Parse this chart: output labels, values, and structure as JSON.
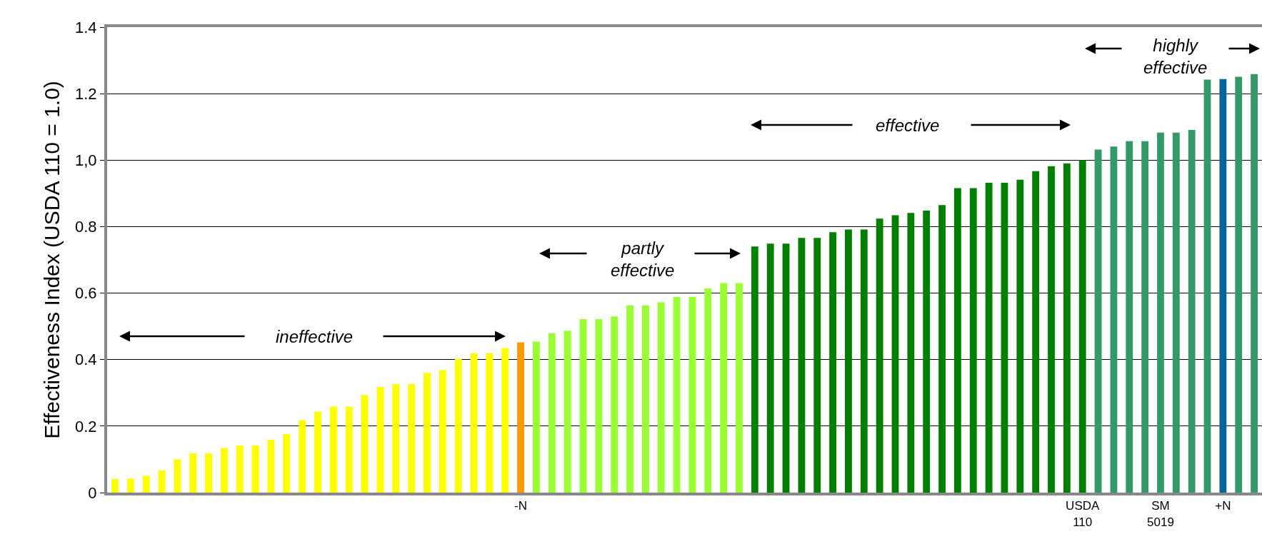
{
  "chart_data": {
    "type": "bar",
    "ylabel": "Effectiveness Index (USDA 110 = 1.0)",
    "categories": [
      null,
      null,
      null,
      null,
      null,
      null,
      null,
      null,
      null,
      null,
      null,
      null,
      null,
      null,
      null,
      null,
      null,
      null,
      null,
      null,
      null,
      null,
      null,
      null,
      null,
      null,
      "-N",
      null,
      null,
      null,
      null,
      null,
      null,
      null,
      null,
      null,
      null,
      null,
      null,
      null,
      null,
      null,
      null,
      null,
      null,
      null,
      null,
      null,
      null,
      null,
      null,
      null,
      null,
      null,
      null,
      null,
      null,
      null,
      null,
      null,
      null,
      null,
      "USDA 110",
      null,
      null,
      null,
      null,
      "SM 5019",
      null,
      null,
      null,
      "+N",
      null,
      null
    ],
    "values": [
      0.041,
      0.042,
      0.051,
      0.067,
      0.1,
      0.118,
      0.118,
      0.134,
      0.142,
      0.142,
      0.159,
      0.176,
      0.218,
      0.243,
      0.259,
      0.259,
      0.293,
      0.318,
      0.327,
      0.327,
      0.36,
      0.369,
      0.402,
      0.419,
      0.419,
      0.435,
      0.452,
      0.454,
      0.479,
      0.487,
      0.522,
      0.522,
      0.53,
      0.563,
      0.563,
      0.572,
      0.589,
      0.589,
      0.614,
      0.63,
      0.63,
      0.74,
      0.749,
      0.749,
      0.766,
      0.766,
      0.783,
      0.791,
      0.791,
      0.824,
      0.834,
      0.841,
      0.848,
      0.865,
      0.916,
      0.916,
      0.932,
      0.932,
      0.941,
      0.967,
      0.982,
      0.99,
      1.0,
      1.032,
      1.041,
      1.057,
      1.057,
      1.083,
      1.083,
      1.091,
      1.242,
      1.244,
      1.251,
      1.259
    ],
    "colors": [
      "#ffff00",
      "#ffff00",
      "#ffff00",
      "#ffff00",
      "#ffff00",
      "#ffff00",
      "#ffff00",
      "#ffff00",
      "#ffff00",
      "#ffff00",
      "#ffff00",
      "#ffff00",
      "#ffff00",
      "#ffff00",
      "#ffff00",
      "#ffff00",
      "#ffff00",
      "#ffff00",
      "#ffff00",
      "#ffff00",
      "#ffff00",
      "#ffff00",
      "#ffff00",
      "#ffff00",
      "#ffff00",
      "#ffff00",
      "#ff9900",
      "#99ff33",
      "#99ff33",
      "#99ff33",
      "#99ff33",
      "#99ff33",
      "#99ff33",
      "#99ff33",
      "#99ff33",
      "#99ff33",
      "#99ff33",
      "#99ff33",
      "#99ff33",
      "#99ff33",
      "#99ff33",
      "#008000",
      "#008000",
      "#008000",
      "#008000",
      "#008000",
      "#008000",
      "#008000",
      "#008000",
      "#008000",
      "#008000",
      "#008000",
      "#008000",
      "#008000",
      "#008000",
      "#008000",
      "#008000",
      "#008000",
      "#008000",
      "#008000",
      "#008000",
      "#008000",
      "#008000",
      "#339966",
      "#339966",
      "#339966",
      "#339966",
      "#339966",
      "#339966",
      "#339966",
      "#339966",
      "#006699",
      "#339966",
      "#339966"
    ],
    "ylim": [
      0,
      1.4
    ],
    "yticks": [
      0,
      0.2,
      0.4,
      0.6,
      0.8,
      {
        "value": 1,
        "label": "1,0"
      },
      1.2,
      1.4
    ],
    "grid": "y",
    "annotations": [
      "ineffective",
      "partly effective",
      "effective",
      "highly effective"
    ]
  }
}
